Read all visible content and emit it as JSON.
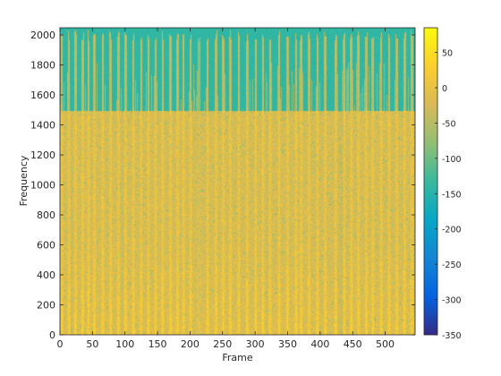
{
  "chart_data": {
    "type": "heatmap",
    "title": "",
    "xlabel": "Frame",
    "ylabel": "Frequency",
    "xlim": [
      0,
      546
    ],
    "ylim": [
      0,
      2048
    ],
    "x_ticks": [
      0,
      50,
      100,
      150,
      200,
      250,
      300,
      350,
      400,
      450,
      500
    ],
    "y_ticks": [
      0,
      200,
      400,
      600,
      800,
      1000,
      1200,
      1400,
      1600,
      1800,
      2000
    ],
    "colorbar": {
      "range": [
        -350,
        85
      ],
      "ticks": [
        50,
        0,
        -50,
        -100,
        -150,
        -200,
        -250,
        -300,
        -350
      ],
      "colormap": "parula"
    },
    "bright_frames": [
      3,
      14,
      24,
      35,
      44,
      53,
      66,
      78,
      90,
      101,
      113,
      125,
      136,
      147,
      158,
      170,
      181,
      190,
      201,
      214,
      227,
      240,
      251,
      262,
      275,
      288,
      301,
      312,
      323,
      337,
      350,
      363,
      371,
      383,
      396,
      408,
      424,
      437,
      448,
      459,
      471,
      481,
      494,
      506,
      518,
      530,
      541
    ],
    "quiet_frames": [
      18,
      96,
      214,
      318,
      430,
      432,
      434
    ],
    "upper_band_cutoff_hz": 1490,
    "top_band_cutoff_hz": 1960,
    "typical_level_db": {
      "low_band_peak": 20,
      "mid_band": -25,
      "upper_band": -80,
      "gap": -140
    }
  },
  "colors": {
    "axis": "#262626",
    "background": "#ffffff",
    "parula_stops": [
      "#352a87",
      "#0363e1",
      "#1485d4",
      "#06a7c6",
      "#38b99e",
      "#92bf73",
      "#d9ba56",
      "#fcce2e",
      "#f9fb0e"
    ]
  }
}
